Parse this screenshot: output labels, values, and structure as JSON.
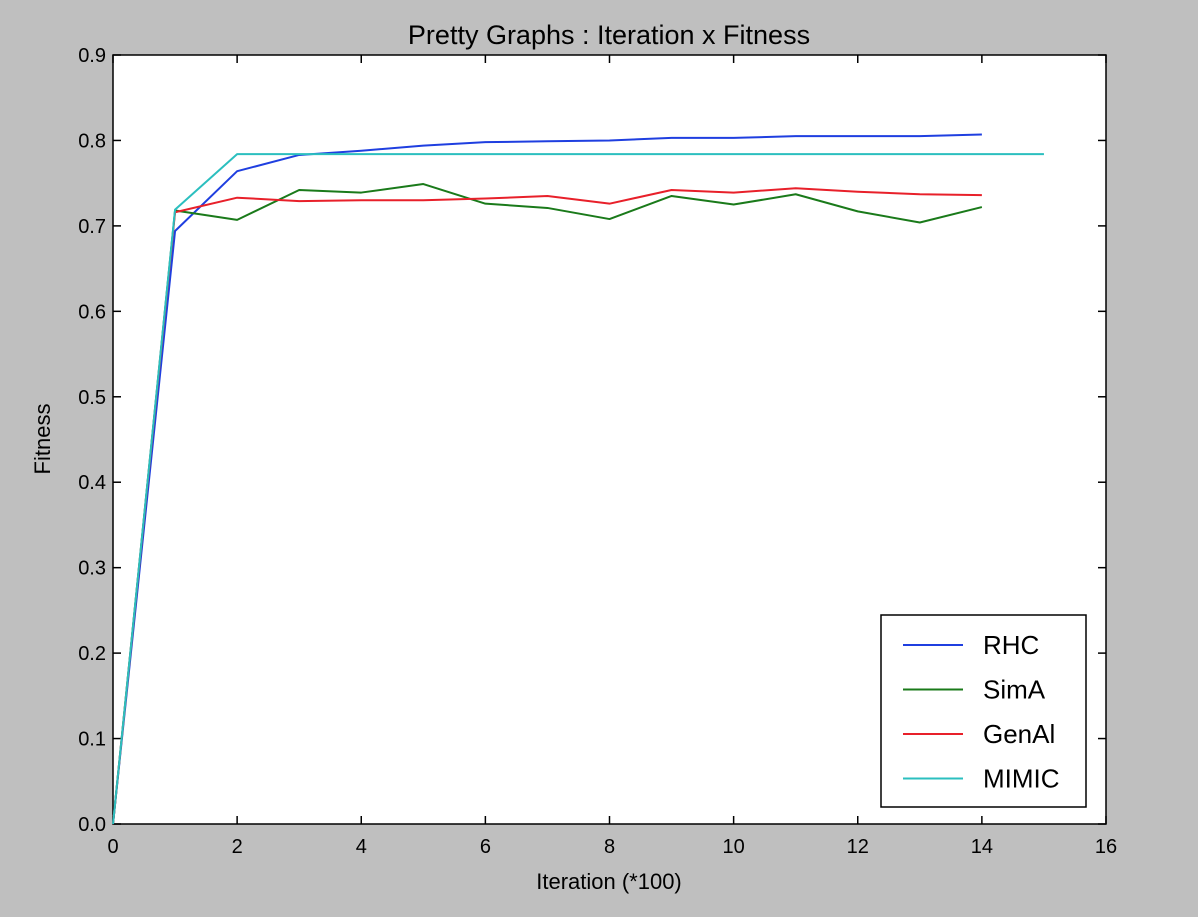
{
  "chart_data": {
    "type": "line",
    "title": "Pretty Graphs : Iteration x Fitness",
    "xlabel": "Iteration (*100)",
    "ylabel": "Fitness",
    "xlim": [
      0,
      16
    ],
    "ylim": [
      0.0,
      0.9
    ],
    "xticks": [
      0,
      2,
      4,
      6,
      8,
      10,
      12,
      14,
      16
    ],
    "xtick_labels": [
      "0",
      "2",
      "4",
      "6",
      "8",
      "10",
      "12",
      "14",
      "16"
    ],
    "yticks": [
      0.0,
      0.1,
      0.2,
      0.3,
      0.4,
      0.5,
      0.6,
      0.7,
      0.8,
      0.9
    ],
    "ytick_labels": [
      "0.0",
      "0.1",
      "0.2",
      "0.3",
      "0.4",
      "0.5",
      "0.6",
      "0.7",
      "0.8",
      "0.9"
    ],
    "grid": false,
    "legend_position": "lower-right",
    "series": [
      {
        "name": "RHC",
        "color": "#1f3fe0",
        "x": [
          0,
          1,
          2,
          3,
          4,
          5,
          6,
          7,
          8,
          9,
          10,
          11,
          12,
          13,
          14
        ],
        "y": [
          0.0,
          0.694,
          0.764,
          0.783,
          0.788,
          0.794,
          0.798,
          0.799,
          0.8,
          0.803,
          0.803,
          0.805,
          0.805,
          0.805,
          0.807
        ]
      },
      {
        "name": "SimA",
        "color": "#1a7a1a",
        "x": [
          0,
          1,
          2,
          3,
          4,
          5,
          6,
          7,
          8,
          9,
          10,
          11,
          12,
          13,
          14
        ],
        "y": [
          0.0,
          0.718,
          0.707,
          0.742,
          0.739,
          0.749,
          0.726,
          0.721,
          0.708,
          0.735,
          0.725,
          0.737,
          0.717,
          0.704,
          0.722
        ]
      },
      {
        "name": "GenAl",
        "color": "#e8202a",
        "x": [
          0,
          1,
          2,
          3,
          4,
          5,
          6,
          7,
          8,
          9,
          10,
          11,
          12,
          13,
          14
        ],
        "y": [
          0.0,
          0.716,
          0.733,
          0.729,
          0.73,
          0.73,
          0.732,
          0.735,
          0.726,
          0.742,
          0.739,
          0.744,
          0.74,
          0.737,
          0.736
        ]
      },
      {
        "name": "MIMIC",
        "color": "#2bbfbf",
        "x": [
          0,
          1,
          2,
          3,
          4,
          5,
          6,
          7,
          8,
          9,
          10,
          11,
          12,
          13,
          14,
          15
        ],
        "y": [
          0.0,
          0.719,
          0.784,
          0.784,
          0.784,
          0.784,
          0.784,
          0.784,
          0.784,
          0.784,
          0.784,
          0.784,
          0.784,
          0.784,
          0.784,
          0.784
        ]
      }
    ]
  }
}
